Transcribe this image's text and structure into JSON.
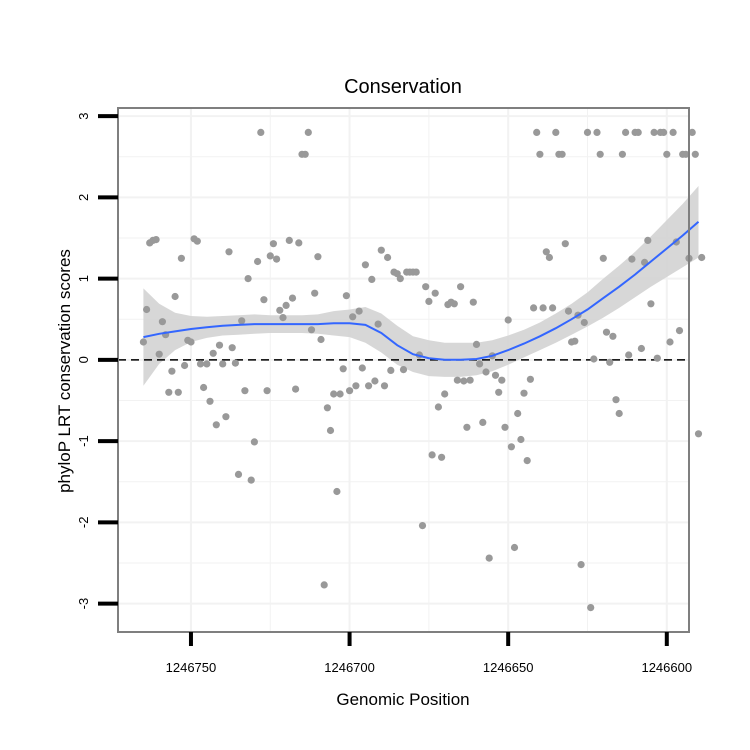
{
  "chart_data": {
    "type": "scatter",
    "title": "Conservation",
    "xlabel": "Genomic Position",
    "ylabel": "phyloP LRT conservation scores",
    "x_reversed": true,
    "xlim": [
      1246773,
      1246593
    ],
    "ylim": [
      -3.35,
      3.1
    ],
    "x_ticks": [
      1246750,
      1246700,
      1246650,
      1246600
    ],
    "x_tick_labels": [
      "1246750",
      "1246700",
      "1246650",
      "1246600"
    ],
    "y_ticks": [
      -3,
      -2,
      -1,
      0,
      1,
      2,
      3
    ],
    "y_tick_labels": [
      "-3",
      "-2",
      "-1",
      "0",
      "1",
      "2",
      "3"
    ],
    "reference_line": {
      "y": 0,
      "style": "dashed"
    },
    "grid": true,
    "colors": {
      "points": "#999999",
      "smooth_line": "#3366ff",
      "confidence_band": "#d3d3d3",
      "panel_border": "#7f7f7f",
      "grid": "#f2f2f2"
    },
    "points": [
      [
        1246765,
        0.22
      ],
      [
        1246764,
        0.62
      ],
      [
        1246763,
        1.44
      ],
      [
        1246762,
        1.47
      ],
      [
        1246761,
        1.48
      ],
      [
        1246760,
        0.07
      ],
      [
        1246759,
        0.47
      ],
      [
        1246758,
        0.31
      ],
      [
        1246757,
        -0.4
      ],
      [
        1246756,
        -0.14
      ],
      [
        1246755,
        0.78
      ],
      [
        1246754,
        -0.4
      ],
      [
        1246753,
        1.25
      ],
      [
        1246752,
        -0.07
      ],
      [
        1246751,
        0.24
      ],
      [
        1246750,
        0.22
      ],
      [
        1246749,
        1.49
      ],
      [
        1246748,
        1.46
      ],
      [
        1246747,
        -0.05
      ],
      [
        1246746,
        -0.34
      ],
      [
        1246745,
        -0.05
      ],
      [
        1246744,
        -0.51
      ],
      [
        1246743,
        0.08
      ],
      [
        1246742,
        -0.8
      ],
      [
        1246741,
        0.18
      ],
      [
        1246740,
        -0.05
      ],
      [
        1246739,
        -0.7
      ],
      [
        1246738,
        1.33
      ],
      [
        1246737,
        0.15
      ],
      [
        1246736,
        -0.04
      ],
      [
        1246735,
        -1.41
      ],
      [
        1246734,
        0.48
      ],
      [
        1246733,
        -0.38
      ],
      [
        1246732,
        1.0
      ],
      [
        1246731,
        -1.48
      ],
      [
        1246730,
        -1.01
      ],
      [
        1246729,
        1.21
      ],
      [
        1246728,
        2.8
      ],
      [
        1246727,
        0.74
      ],
      [
        1246726,
        -0.38
      ],
      [
        1246725,
        1.28
      ],
      [
        1246724,
        1.43
      ],
      [
        1246723,
        1.24
      ],
      [
        1246722,
        0.61
      ],
      [
        1246721,
        0.52
      ],
      [
        1246720,
        0.67
      ],
      [
        1246719,
        1.47
      ],
      [
        1246718,
        0.76
      ],
      [
        1246717,
        -0.36
      ],
      [
        1246716,
        1.44
      ],
      [
        1246715,
        2.53
      ],
      [
        1246714,
        2.53
      ],
      [
        1246713,
        2.8
      ],
      [
        1246712,
        0.37
      ],
      [
        1246711,
        0.82
      ],
      [
        1246710,
        1.27
      ],
      [
        1246709,
        0.25
      ],
      [
        1246708,
        -2.77
      ],
      [
        1246707,
        -0.59
      ],
      [
        1246706,
        -0.87
      ],
      [
        1246705,
        -0.42
      ],
      [
        1246704,
        -1.62
      ],
      [
        1246703,
        -0.42
      ],
      [
        1246702,
        -0.11
      ],
      [
        1246701,
        0.79
      ],
      [
        1246700,
        -0.38
      ],
      [
        1246699,
        0.53
      ],
      [
        1246698,
        -0.32
      ],
      [
        1246697,
        0.6
      ],
      [
        1246696,
        -0.1
      ],
      [
        1246695,
        1.17
      ],
      [
        1246694,
        -0.32
      ],
      [
        1246693,
        0.99
      ],
      [
        1246692,
        -0.26
      ],
      [
        1246691,
        0.44
      ],
      [
        1246690,
        1.35
      ],
      [
        1246689,
        -0.32
      ],
      [
        1246688,
        1.26
      ],
      [
        1246687,
        -0.13
      ],
      [
        1246686,
        1.08
      ],
      [
        1246685,
        1.06
      ],
      [
        1246684,
        1.0
      ],
      [
        1246683,
        -0.12
      ],
      [
        1246682,
        1.08
      ],
      [
        1246681,
        1.08
      ],
      [
        1246680,
        1.08
      ],
      [
        1246679,
        1.08
      ],
      [
        1246678,
        0.06
      ],
      [
        1246677,
        -2.04
      ],
      [
        1246676,
        0.9
      ],
      [
        1246675,
        0.72
      ],
      [
        1246674,
        -1.17
      ],
      [
        1246673,
        0.82
      ],
      [
        1246672,
        -0.58
      ],
      [
        1246671,
        -1.2
      ],
      [
        1246670,
        -0.42
      ],
      [
        1246669,
        0.68
      ],
      [
        1246668,
        0.71
      ],
      [
        1246667,
        0.69
      ],
      [
        1246666,
        -0.25
      ],
      [
        1246665,
        0.9
      ],
      [
        1246664,
        -0.26
      ],
      [
        1246663,
        -0.83
      ],
      [
        1246662,
        -0.25
      ],
      [
        1246661,
        0.71
      ],
      [
        1246660,
        0.19
      ],
      [
        1246659,
        -0.05
      ],
      [
        1246658,
        -0.77
      ],
      [
        1246657,
        -0.15
      ],
      [
        1246656,
        -2.44
      ],
      [
        1246655,
        0.05
      ],
      [
        1246654,
        -0.19
      ],
      [
        1246653,
        -0.4
      ],
      [
        1246652,
        -0.25
      ],
      [
        1246651,
        -0.83
      ],
      [
        1246650,
        0.49
      ],
      [
        1246649,
        -1.07
      ],
      [
        1246648,
        -2.31
      ],
      [
        1246647,
        -0.66
      ],
      [
        1246646,
        -0.98
      ],
      [
        1246645,
        -0.41
      ],
      [
        1246644,
        -1.24
      ],
      [
        1246643,
        -0.24
      ],
      [
        1246642,
        0.64
      ],
      [
        1246641,
        2.8
      ],
      [
        1246640,
        2.53
      ],
      [
        1246639,
        0.64
      ],
      [
        1246638,
        1.33
      ],
      [
        1246637,
        1.26
      ],
      [
        1246636,
        0.64
      ],
      [
        1246635,
        2.8
      ],
      [
        1246634,
        2.53
      ],
      [
        1246633,
        2.53
      ],
      [
        1246632,
        1.43
      ],
      [
        1246631,
        0.6
      ],
      [
        1246630,
        0.22
      ],
      [
        1246629,
        0.23
      ],
      [
        1246628,
        0.55
      ],
      [
        1246627,
        -2.52
      ],
      [
        1246626,
        0.46
      ],
      [
        1246625,
        2.8
      ],
      [
        1246624,
        -3.05
      ],
      [
        1246623,
        0.01
      ],
      [
        1246622,
        2.8
      ],
      [
        1246621,
        2.53
      ],
      [
        1246620,
        1.25
      ],
      [
        1246619,
        0.34
      ],
      [
        1246618,
        -0.03
      ],
      [
        1246617,
        0.29
      ],
      [
        1246616,
        -0.49
      ],
      [
        1246615,
        -0.66
      ],
      [
        1246614,
        2.53
      ],
      [
        1246613,
        2.8
      ],
      [
        1246612,
        0.06
      ],
      [
        1246611,
        1.24
      ],
      [
        1246610,
        2.8
      ],
      [
        1246609,
        2.8
      ],
      [
        1246608,
        0.14
      ],
      [
        1246607,
        1.2
      ],
      [
        1246606,
        1.47
      ],
      [
        1246605,
        0.69
      ],
      [
        1246604,
        2.8
      ],
      [
        1246603,
        0.02
      ],
      [
        1246602,
        2.8
      ],
      [
        1246601,
        2.8
      ],
      [
        1246600,
        2.53
      ],
      [
        1246599,
        0.22
      ],
      [
        1246598,
        2.8
      ],
      [
        1246597,
        1.45
      ],
      [
        1246596,
        0.36
      ],
      [
        1246595,
        2.53
      ],
      [
        1246594,
        2.53
      ],
      [
        1246593,
        1.25
      ],
      [
        1246592,
        2.8
      ],
      [
        1246591,
        2.53
      ],
      [
        1246590,
        -0.91
      ],
      [
        1246589,
        1.26
      ]
    ],
    "smooth": {
      "x": [
        1246765,
        1246760,
        1246755,
        1246750,
        1246745,
        1246740,
        1246735,
        1246730,
        1246725,
        1246720,
        1246715,
        1246710,
        1246705,
        1246700,
        1246695,
        1246690,
        1246685,
        1246680,
        1246675,
        1246670,
        1246665,
        1246660,
        1246655,
        1246650,
        1246645,
        1246640,
        1246635,
        1246630,
        1246625,
        1246620,
        1246615,
        1246610,
        1246605,
        1246600,
        1246595,
        1246590
      ],
      "y": [
        0.28,
        0.32,
        0.35,
        0.38,
        0.4,
        0.42,
        0.43,
        0.44,
        0.44,
        0.44,
        0.44,
        0.44,
        0.45,
        0.45,
        0.43,
        0.33,
        0.18,
        0.07,
        0.02,
        0.0,
        0.0,
        0.01,
        0.05,
        0.12,
        0.2,
        0.29,
        0.39,
        0.5,
        0.62,
        0.76,
        0.9,
        1.05,
        1.21,
        1.37,
        1.53,
        1.7
      ],
      "lower": [
        -0.32,
        -0.05,
        0.12,
        0.22,
        0.27,
        0.3,
        0.31,
        0.32,
        0.33,
        0.33,
        0.33,
        0.32,
        0.3,
        0.28,
        0.21,
        0.09,
        -0.06,
        -0.15,
        -0.2,
        -0.21,
        -0.21,
        -0.19,
        -0.14,
        -0.06,
        0.03,
        0.12,
        0.21,
        0.31,
        0.41,
        0.52,
        0.64,
        0.77,
        0.9,
        1.02,
        1.14,
        1.26
      ],
      "upper": [
        0.88,
        0.69,
        0.58,
        0.54,
        0.53,
        0.54,
        0.55,
        0.56,
        0.55,
        0.55,
        0.55,
        0.56,
        0.6,
        0.62,
        0.65,
        0.57,
        0.42,
        0.29,
        0.24,
        0.21,
        0.21,
        0.21,
        0.24,
        0.3,
        0.37,
        0.46,
        0.57,
        0.69,
        0.83,
        1.0,
        1.16,
        1.33,
        1.52,
        1.72,
        1.92,
        2.14
      ]
    }
  }
}
